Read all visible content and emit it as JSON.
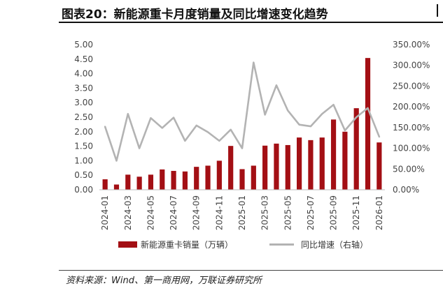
{
  "title": "图表20：新能源重卡月度销量及同比增速变化趋势",
  "source": "资料来源：Wind、第一商用网，万联证券研究所",
  "chart_data": {
    "type": "bar+line",
    "categories": [
      "2024-01",
      "2024-02",
      "2024-03",
      "2024-04",
      "2024-05",
      "2024-06",
      "2024-07",
      "2024-08",
      "2024-09",
      "2024-10",
      "2024-11",
      "2024-12",
      "2025-01",
      "2025-02",
      "2025-03",
      "2025-04",
      "2025-05",
      "2025-06",
      "2025-07",
      "2025-08",
      "2025-09",
      "2025-10",
      "2025-11",
      "2025-12",
      "2026-01"
    ],
    "x_tick_labels": [
      "2024-01",
      "2024-03",
      "2024-05",
      "2024-07",
      "2024-09",
      "2024-11",
      "2025-01",
      "2025-03",
      "2025-05",
      "2025-07",
      "2025-09",
      "2025-11",
      "2026-01"
    ],
    "series": [
      {
        "name": "新能源重卡销量（万辆）",
        "type": "bar",
        "axis": "left",
        "color": "#A30F14",
        "values": [
          0.36,
          0.18,
          0.52,
          0.45,
          0.52,
          0.7,
          0.65,
          0.63,
          0.79,
          0.83,
          1.0,
          1.51,
          0.71,
          0.83,
          1.52,
          1.59,
          1.54,
          1.8,
          1.71,
          1.8,
          2.42,
          2.0,
          2.81,
          4.54,
          1.63
        ]
      },
      {
        "name": "同比增速（右轴）",
        "type": "line",
        "axis": "right",
        "color": "#B3B3B3",
        "values": [
          152,
          70,
          183,
          100,
          173,
          149,
          174,
          118,
          155,
          139,
          118,
          145,
          100,
          307,
          181,
          252,
          191,
          157,
          153,
          183,
          205,
          143,
          175,
          197,
          128
        ]
      }
    ],
    "y_left": {
      "min": 0,
      "max": 5,
      "step": 0.5,
      "tick_labels": [
        "0.00",
        "0.50",
        "1.00",
        "1.50",
        "2.00",
        "2.50",
        "3.00",
        "3.50",
        "4.00",
        "4.50",
        "5.00"
      ]
    },
    "y_right": {
      "min": 0,
      "max": 350,
      "step": 50,
      "tick_labels": [
        "0.00%",
        "50.00%",
        "100.00%",
        "150.00%",
        "200.00%",
        "250.00%",
        "300.00%",
        "350.00%"
      ]
    },
    "grid": false,
    "legend_position": "bottom"
  }
}
